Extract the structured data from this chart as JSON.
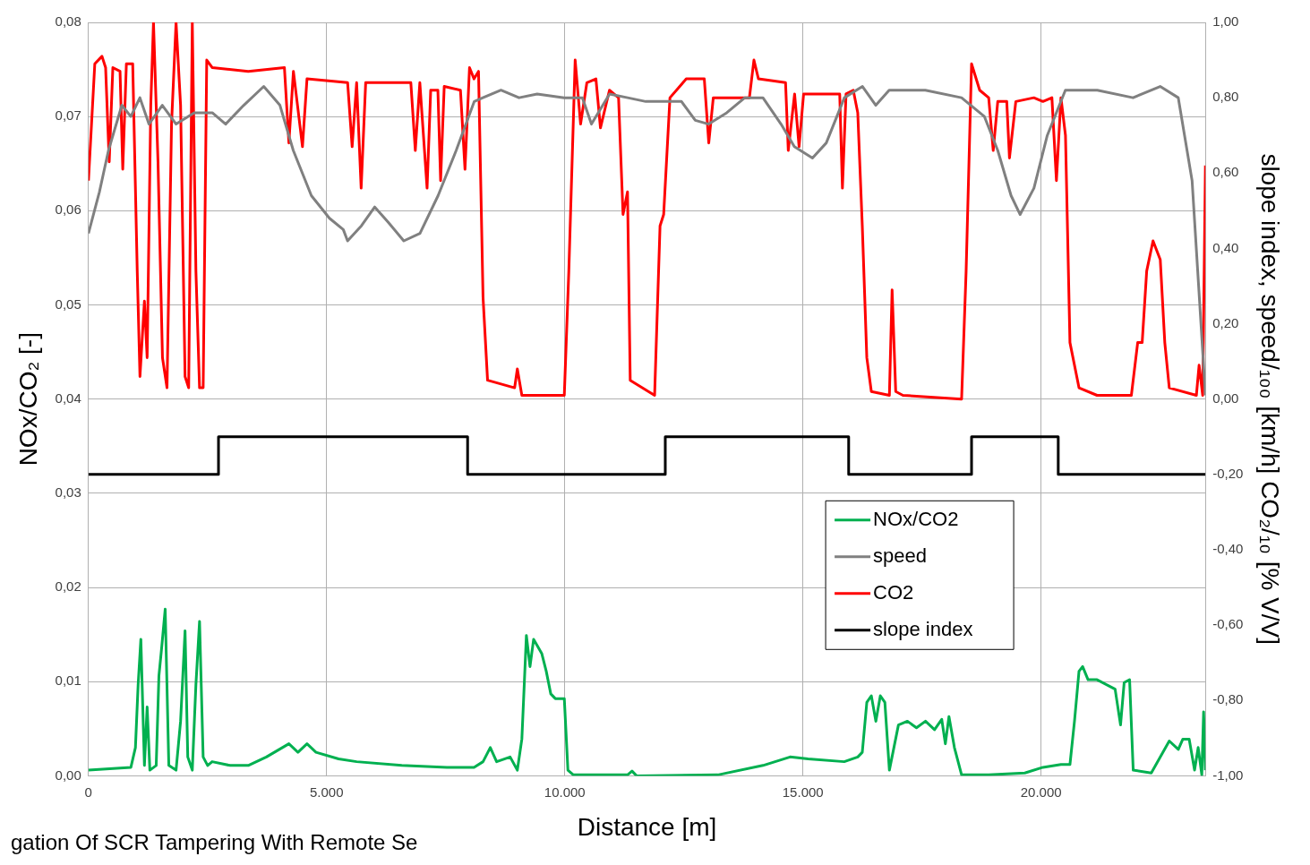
{
  "chart_data": {
    "type": "line",
    "xlabel": "Distance [m]",
    "ylabel": "NOx/CO₂ [-]",
    "y2label": "slope index, speed/₁₀₀ [km/h] CO₂/₁₀ [% V/V]",
    "annotations": [
      "gation Of SCR Tampering With Remote Se"
    ],
    "xlim": [
      0,
      23450
    ],
    "xticks": [
      0,
      {
        "value": 5000,
        "label": "5.000"
      },
      {
        "value": 10000,
        "label": "10.000"
      },
      {
        "value": 15000,
        "label": "15.000"
      },
      {
        "value": 20000,
        "label": "20.000"
      }
    ],
    "ylim": [
      0,
      0.08
    ],
    "yticks": [
      {
        "value": 0,
        "label": "0,00"
      },
      {
        "value": 0.01,
        "label": "0,01"
      },
      {
        "value": 0.02,
        "label": "0,02"
      },
      {
        "value": 0.03,
        "label": "0,03"
      },
      {
        "value": 0.04,
        "label": "0,04"
      },
      {
        "value": 0.05,
        "label": "0,05"
      },
      {
        "value": 0.06,
        "label": "0,06"
      },
      {
        "value": 0.07,
        "label": "0,07"
      },
      {
        "value": 0.08,
        "label": "0,08"
      }
    ],
    "y2lim": [
      -1,
      1
    ],
    "y2ticks": [
      {
        "value": -1,
        "label": "-1,00"
      },
      {
        "value": -0.8,
        "label": "-0,80"
      },
      {
        "value": -0.6,
        "label": "-0,60"
      },
      {
        "value": -0.4,
        "label": "-0,40"
      },
      {
        "value": -0.2,
        "label": "-0,20"
      },
      {
        "value": 0,
        "label": "0,00"
      },
      {
        "value": 0.2,
        "label": "0,20"
      },
      {
        "value": 0.4,
        "label": "0,40"
      },
      {
        "value": 0.6,
        "label": "0,60"
      },
      {
        "value": 0.8,
        "label": "0,80"
      },
      {
        "value": 1,
        "label": "1,00"
      }
    ],
    "grid": true,
    "legend": "bottom right",
    "marker": "none",
    "series": [
      {
        "name": "NOx/CO2",
        "color": "#00b050",
        "x": [
          0,
          891,
          986,
          1043,
          1100,
          1175,
          1232,
          1289,
          1422,
          1479,
          1535,
          1611,
          1687,
          1839,
          1934,
          2028,
          2085,
          2180,
          2256,
          2332,
          2408,
          2502,
          2597,
          2976,
          3355,
          3735,
          4208,
          4398,
          4588,
          4777,
          5251,
          5630,
          6578,
          7526,
          8095,
          8284,
          8436,
          8569,
          8853,
          9004,
          9099,
          9194,
          9270,
          9346,
          9516,
          9611,
          9706,
          9801,
          9990,
          10066,
          10180,
          11317,
          11412,
          11507,
          13213,
          14161,
          14730,
          15109,
          15867,
          16151,
          16246,
          16341,
          16436,
          16531,
          16625,
          16720,
          16815,
          16910,
          17005,
          17194,
          17384,
          17573,
          17763,
          17914,
          17990,
          18066,
          18180,
          18331,
          18900,
          19658,
          20038,
          20417,
          20606,
          20701,
          20796,
          20872,
          20986,
          21175,
          21554,
          21668,
          21744,
          21858,
          21934,
          22313,
          22691,
          22881,
          22976,
          23109,
          23222,
          23298,
          23374,
          23412,
          23450
        ],
        "values": [
          0.0006,
          0.0009,
          0.003,
          0.0097,
          0.0145,
          0.0011,
          0.0073,
          0.0006,
          0.0011,
          0.0106,
          0.0135,
          0.0177,
          0.0011,
          0.0006,
          0.0058,
          0.0154,
          0.002,
          0.0006,
          0.0097,
          0.0164,
          0.002,
          0.0011,
          0.0015,
          0.0011,
          0.0011,
          0.002,
          0.0034,
          0.0025,
          0.0034,
          0.0025,
          0.0018,
          0.0015,
          0.0011,
          0.0009,
          0.0009,
          0.0015,
          0.003,
          0.0015,
          0.002,
          0.0006,
          0.0039,
          0.0149,
          0.0116,
          0.0145,
          0.013,
          0.0111,
          0.0087,
          0.0082,
          0.0082,
          0.0006,
          0.0001,
          0.0001,
          0.0005,
          0,
          0.0001,
          0.0011,
          0.002,
          0.0018,
          0.0015,
          0.002,
          0.0025,
          0.0078,
          0.0085,
          0.0058,
          0.0085,
          0.0078,
          0.0006,
          0.003,
          0.0054,
          0.0058,
          0.0051,
          0.0058,
          0.0049,
          0.006,
          0.0034,
          0.0063,
          0.003,
          0.0001,
          0.0001,
          0.0003,
          0.0009,
          0.0012,
          0.0012,
          0.0058,
          0.0111,
          0.0116,
          0.0102,
          0.0102,
          0.0092,
          0.0054,
          0.0099,
          0.0102,
          0.0006,
          0.0003,
          0.0037,
          0.0028,
          0.0039,
          0.0039,
          0.0006,
          0.003,
          0.0001,
          0.0068,
          0.0006
        ]
      },
      {
        "name": "speed",
        "color": "#808080",
        "axis": "y2",
        "x": [
          0,
          230,
          420,
          700,
          890,
          1080,
          1270,
          1550,
          1840,
          2220,
          2600,
          2880,
          3260,
          3680,
          4020,
          4300,
          4680,
          5060,
          5350,
          5440,
          5730,
          6010,
          6290,
          6620,
          6960,
          7340,
          7720,
          8100,
          8280,
          8660,
          9040,
          9420,
          9990,
          10370,
          10560,
          10940,
          11320,
          11700,
          12450,
          12740,
          13020,
          13400,
          13780,
          14160,
          14540,
          14820,
          15200,
          15490,
          15870,
          16250,
          16530,
          16810,
          17570,
          18330,
          18810,
          19090,
          19370,
          19560,
          19850,
          20130,
          20510,
          21180,
          21930,
          22500,
          22880,
          23170,
          23450
        ],
        "values": [
          0.44,
          0.55,
          0.66,
          0.78,
          0.75,
          0.8,
          0.73,
          0.78,
          0.73,
          0.76,
          0.76,
          0.73,
          0.78,
          0.83,
          0.78,
          0.66,
          0.54,
          0.48,
          0.45,
          0.42,
          0.46,
          0.51,
          0.47,
          0.42,
          0.44,
          0.54,
          0.66,
          0.79,
          0.8,
          0.82,
          0.8,
          0.81,
          0.8,
          0.8,
          0.73,
          0.81,
          0.8,
          0.79,
          0.79,
          0.74,
          0.73,
          0.76,
          0.8,
          0.8,
          0.73,
          0.67,
          0.64,
          0.68,
          0.8,
          0.83,
          0.78,
          0.82,
          0.82,
          0.8,
          0.75,
          0.66,
          0.54,
          0.49,
          0.56,
          0.7,
          0.82,
          0.82,
          0.8,
          0.83,
          0.8,
          0.58,
          0.01
        ]
      },
      {
        "name": "CO2",
        "color": "#ff0000",
        "axis": "y2",
        "x": [
          0,
          133,
          284,
          360,
          436,
          512,
          663,
          720,
          796,
          929,
          1024,
          1081,
          1175,
          1232,
          1308,
          1365,
          1460,
          1554,
          1649,
          1744,
          1839,
          1934,
          2028,
          2104,
          2180,
          2256,
          2332,
          2408,
          2483,
          2597,
          3355,
          4114,
          4208,
          4303,
          4493,
          4588,
          5441,
          5536,
          5630,
          5725,
          5820,
          6768,
          6862,
          6957,
          7109,
          7185,
          7336,
          7393,
          7469,
          7810,
          7905,
          8000,
          8095,
          8189,
          8284,
          8379,
          8947,
          9004,
          9099,
          9990,
          10085,
          10218,
          10332,
          10464,
          10654,
          10749,
          10938,
          11129,
          11223,
          11317,
          11374,
          11886,
          12000,
          12076,
          12208,
          12550,
          12929,
          13023,
          13118,
          13876,
          13971,
          14066,
          14635,
          14692,
          14825,
          14919,
          15014,
          15772,
          15829,
          15905,
          16057,
          16151,
          16246,
          16341,
          16436,
          16815,
          16872,
          16948,
          17099,
          18331,
          18426,
          18540,
          18711,
          18900,
          18995,
          19090,
          19279,
          19336,
          19469,
          19848,
          20038,
          20227,
          20322,
          20417,
          20512,
          20606,
          20796,
          21175,
          21895,
          22028,
          22122,
          22217,
          22350,
          22502,
          22597,
          22691,
          23260,
          23317,
          23393,
          23450
        ],
        "values": [
          0.58,
          0.89,
          0.91,
          0.88,
          0.63,
          0.88,
          0.87,
          0.61,
          0.89,
          0.89,
          0.34,
          0.06,
          0.26,
          0.11,
          0.78,
          1,
          0.63,
          0.11,
          0.03,
          0.73,
          1,
          0.78,
          0.06,
          0.03,
          1,
          0.34,
          0.03,
          0.03,
          0.9,
          0.88,
          0.87,
          0.88,
          0.68,
          0.87,
          0.67,
          0.85,
          0.84,
          0.67,
          0.84,
          0.56,
          0.84,
          0.84,
          0.66,
          0.84,
          0.56,
          0.82,
          0.82,
          0.58,
          0.83,
          0.82,
          0.61,
          0.88,
          0.85,
          0.87,
          0.27,
          0.05,
          0.03,
          0.08,
          0.01,
          0.01,
          0.34,
          0.9,
          0.73,
          0.84,
          0.85,
          0.72,
          0.82,
          0.8,
          0.49,
          0.55,
          0.05,
          0.01,
          0.46,
          0.49,
          0.8,
          0.85,
          0.85,
          0.68,
          0.8,
          0.8,
          0.9,
          0.85,
          0.84,
          0.66,
          0.81,
          0.67,
          0.81,
          0.81,
          0.56,
          0.81,
          0.82,
          0.76,
          0.46,
          0.11,
          0.02,
          0.01,
          0.29,
          0.02,
          0.01,
          0,
          0.34,
          0.89,
          0.82,
          0.8,
          0.66,
          0.79,
          0.79,
          0.64,
          0.79,
          0.8,
          0.79,
          0.8,
          0.58,
          0.8,
          0.7,
          0.15,
          0.03,
          0.01,
          0.01,
          0.15,
          0.15,
          0.34,
          0.42,
          0.37,
          0.15,
          0.03,
          0.01,
          0.09,
          0.01,
          0.62
        ]
      },
      {
        "name": "slope index",
        "color": "#000000",
        "axis": "y2",
        "type": "step",
        "x": [
          0,
          2730,
          7960,
          12110,
          15960,
          18540,
          20360,
          23450
        ],
        "values": [
          -0.2,
          -0.1,
          -0.2,
          -0.1,
          -0.2,
          -0.1,
          -0.2,
          -0.2
        ]
      }
    ]
  }
}
